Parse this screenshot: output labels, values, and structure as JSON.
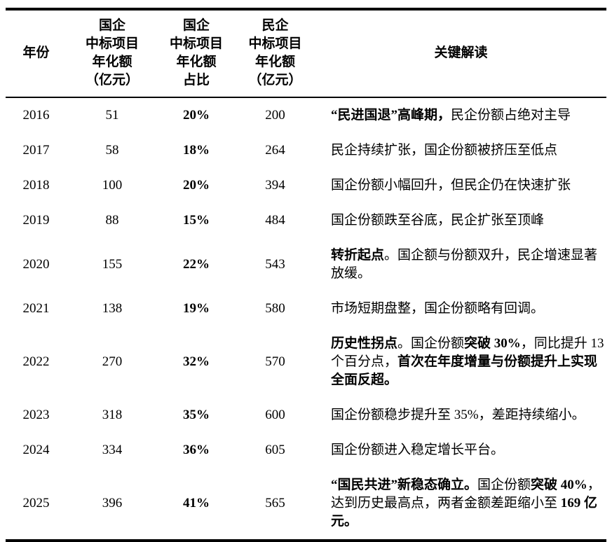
{
  "page": {
    "background_color": "#ffffff",
    "text_color": "#000000"
  },
  "table": {
    "columns": [
      {
        "id": "year",
        "header": "年份"
      },
      {
        "id": "soe_amount",
        "header": "国企\n中标项目\n年化额\n（亿元）"
      },
      {
        "id": "soe_share",
        "header": "国企\n中标项目\n年化额\n占比"
      },
      {
        "id": "poe_amount",
        "header": "民企\n中标项目\n年化额\n（亿元）"
      },
      {
        "id": "interpretation",
        "header": "关键解读"
      }
    ],
    "rows": [
      {
        "year": "2016",
        "soe_amount": "51",
        "soe_share": "20%",
        "poe_amount": "200",
        "interpretation": [
          {
            "text": "“民进国退”高峰期，",
            "bold": true
          },
          {
            "text": "民企份额占绝对主导",
            "bold": false
          }
        ]
      },
      {
        "year": "2017",
        "soe_amount": "58",
        "soe_share": "18%",
        "poe_amount": "264",
        "interpretation": [
          {
            "text": "民企持续扩张，国企份额被挤压至低点",
            "bold": false
          }
        ]
      },
      {
        "year": "2018",
        "soe_amount": "100",
        "soe_share": "20%",
        "poe_amount": "394",
        "interpretation": [
          {
            "text": "国企份额小幅回升，但民企仍在快速扩张",
            "bold": false
          }
        ]
      },
      {
        "year": "2019",
        "soe_amount": "88",
        "soe_share": "15%",
        "poe_amount": "484",
        "interpretation": [
          {
            "text": "国企份额跌至谷底，民企扩张至顶峰",
            "bold": false
          }
        ]
      },
      {
        "year": "2020",
        "soe_amount": "155",
        "soe_share": "22%",
        "poe_amount": "543",
        "interpretation": [
          {
            "text": "转折起点",
            "bold": true
          },
          {
            "text": "。国企额与份额双升，民企增速显著放缓。",
            "bold": false
          }
        ]
      },
      {
        "year": "2021",
        "soe_amount": "138",
        "soe_share": "19%",
        "poe_amount": "580",
        "interpretation": [
          {
            "text": "市场短期盘整，国企份额略有回调。",
            "bold": false
          }
        ]
      },
      {
        "year": "2022",
        "soe_amount": "270",
        "soe_share": "32%",
        "poe_amount": "570",
        "interpretation": [
          {
            "text": "历史性拐点",
            "bold": true
          },
          {
            "text": "。国企份额",
            "bold": false
          },
          {
            "text": "突破 30%",
            "bold": true
          },
          {
            "text": "，同比提升 13 个百分点，",
            "bold": false
          },
          {
            "text": "首次在年度增量与份额提升上实现全面反超。",
            "bold": true
          }
        ]
      },
      {
        "year": "2023",
        "soe_amount": "318",
        "soe_share": "35%",
        "poe_amount": "600",
        "interpretation": [
          {
            "text": "国企份额稳步提升至 35%，差距持续缩小。",
            "bold": false
          }
        ]
      },
      {
        "year": "2024",
        "soe_amount": "334",
        "soe_share": "36%",
        "poe_amount": "605",
        "interpretation": [
          {
            "text": "国企份额进入稳定增长平台。",
            "bold": false
          }
        ]
      },
      {
        "year": "2025",
        "soe_amount": "396",
        "soe_share": "41%",
        "poe_amount": "565",
        "interpretation": [
          {
            "text": "“国民共进”新稳态确立。",
            "bold": true
          },
          {
            "text": "国企份额",
            "bold": false
          },
          {
            "text": "突破 40%",
            "bold": true
          },
          {
            "text": "，达到历史最高点，两者金额差距缩小至 ",
            "bold": false
          },
          {
            "text": "169 亿元。",
            "bold": true
          }
        ]
      }
    ]
  }
}
